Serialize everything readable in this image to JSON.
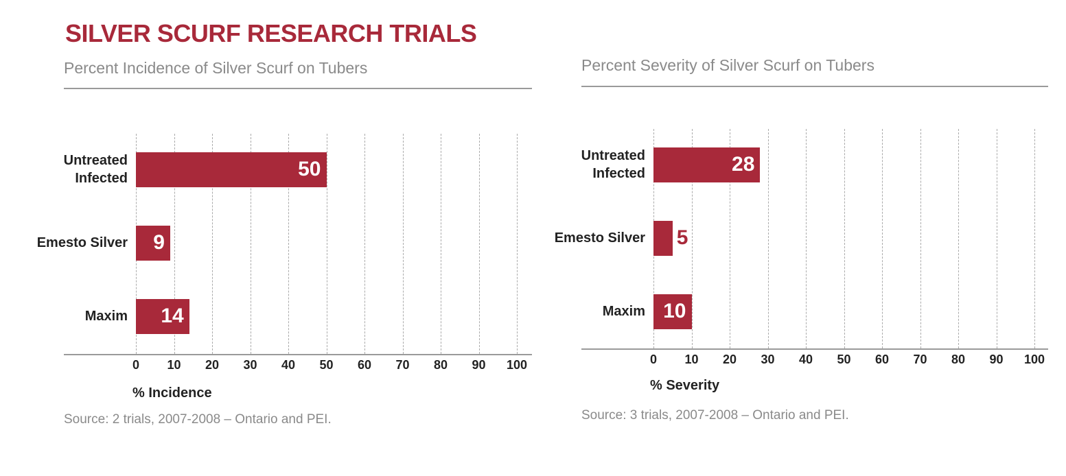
{
  "title": "SILVER SCURF RESEARCH TRIALS",
  "chart_data": [
    {
      "type": "bar",
      "orientation": "horizontal",
      "subtitle": "Percent Incidence of Silver Scurf on Tubers",
      "categories": [
        "Untreated Infected",
        "Emesto Silver",
        "Maxim"
      ],
      "values": [
        50,
        9,
        14
      ],
      "color": "#a8293a",
      "xlim": [
        0,
        100
      ],
      "xticks": [
        0,
        10,
        20,
        30,
        40,
        50,
        60,
        70,
        80,
        90,
        100
      ],
      "grid": true,
      "xlabel": "% Incidence",
      "source": "Source: 2 trials, 2007-2008 – Ontario and PEI."
    },
    {
      "type": "bar",
      "orientation": "horizontal",
      "subtitle": "Percent Severity of Silver Scurf on Tubers",
      "categories": [
        "Untreated Infected",
        "Emesto Silver",
        "Maxim"
      ],
      "values": [
        28,
        5,
        10
      ],
      "color": "#a8293a",
      "xlim": [
        0,
        100
      ],
      "xticks": [
        0,
        10,
        20,
        30,
        40,
        50,
        60,
        70,
        80,
        90,
        100
      ],
      "grid": true,
      "xlabel": "% Severity",
      "source": "Source: 3 trials, 2007-2008 – Ontario and PEI."
    }
  ]
}
